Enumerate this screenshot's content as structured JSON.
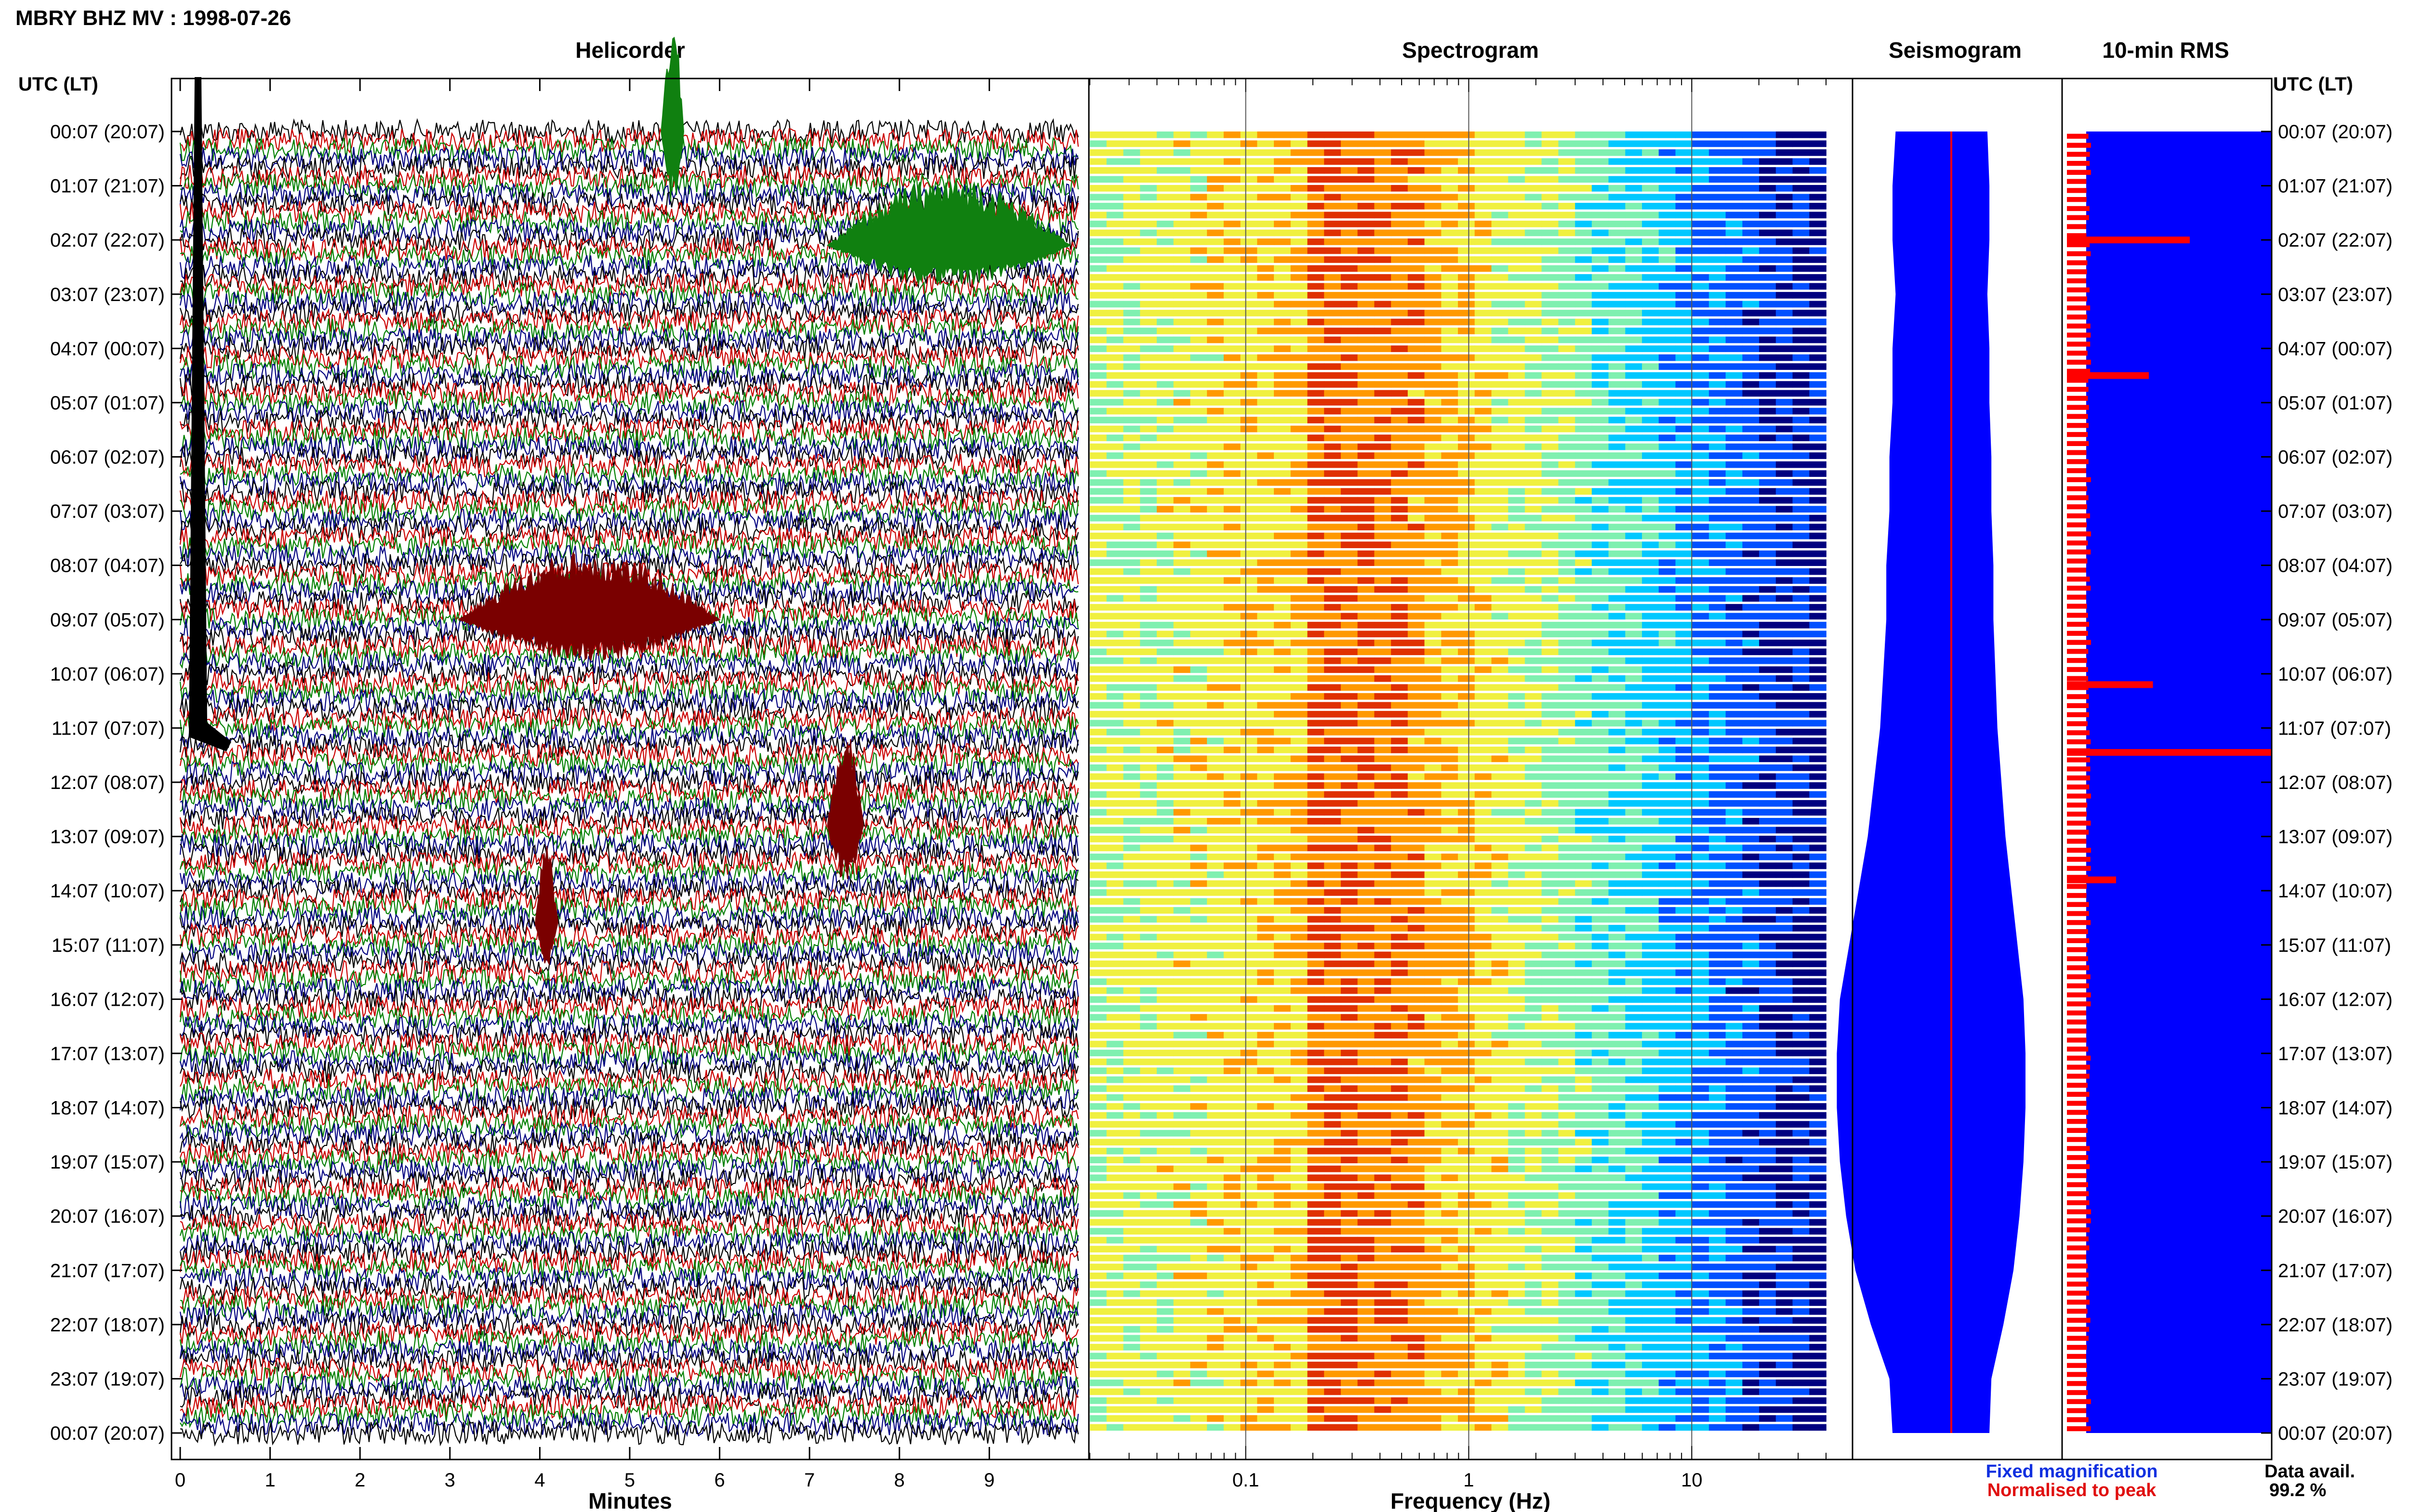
{
  "header": {
    "title": "MBRY BHZ MV : 1998-07-26"
  },
  "time_axis": {
    "left_header": "UTC (LT)",
    "right_header": "UTC (LT)",
    "labels": [
      "00:07 (20:07)",
      "01:07 (21:07)",
      "02:07 (22:07)",
      "03:07 (23:07)",
      "04:07 (00:07)",
      "05:07 (01:07)",
      "06:07 (02:07)",
      "07:07 (03:07)",
      "08:07 (04:07)",
      "09:07 (05:07)",
      "10:07 (06:07)",
      "11:07 (07:07)",
      "12:07 (08:07)",
      "13:07 (09:07)",
      "14:07 (10:07)",
      "15:07 (11:07)",
      "16:07 (12:07)",
      "17:07 (13:07)",
      "18:07 (14:07)",
      "19:07 (15:07)",
      "20:07 (16:07)",
      "21:07 (17:07)",
      "22:07 (18:07)",
      "23:07 (19:07)",
      "00:07 (20:07)"
    ]
  },
  "legend": {
    "fixed": "Fixed magnification",
    "normalised": "Normalised to peak",
    "fixed_color": "#1030e0",
    "normalised_color": "#e01010"
  },
  "data_avail": {
    "label": "Data avail.",
    "value": "99.2 %"
  },
  "colors": {
    "trace_cycle": [
      "#000000",
      "#cc0000",
      "#008000",
      "#000080"
    ],
    "helicorder_event_red": "#7a0000",
    "helicorder_event_green": "#108010",
    "seismogram_fill": "#0000ff",
    "rms_fill": "#0000ff",
    "rms_bar": "#ff0000",
    "spectrogram_scale": [
      "#000080",
      "#0050ff",
      "#00c8ff",
      "#7ff0b0",
      "#f0f040",
      "#ff9900",
      "#e03000"
    ]
  },
  "chart_data": [
    {
      "type": "helicorder",
      "title": "Helicorder",
      "xlabel": "Minutes",
      "xlim": [
        0,
        10
      ],
      "xticks": [
        0,
        1,
        2,
        3,
        4,
        5,
        6,
        7,
        8,
        9
      ],
      "rows": 145,
      "events": [
        {
          "hour": 0.0,
          "minute_start": 5.35,
          "minute_end": 5.6,
          "amplitude": 2.0,
          "color": "green"
        },
        {
          "hour": 2.1,
          "minute_start": 7.2,
          "minute_end": 9.9,
          "amplitude": 1.0,
          "color": "green"
        },
        {
          "hour": 9.0,
          "minute_start": 3.1,
          "minute_end": 6.0,
          "amplitude": 1.0,
          "color": "red"
        },
        {
          "hour": 12.8,
          "minute_start": 7.2,
          "minute_end": 7.6,
          "amplitude": 1.5,
          "color": "red"
        },
        {
          "hour": 14.6,
          "minute_start": 3.95,
          "minute_end": 4.2,
          "amplitude": 1.2,
          "color": "red"
        }
      ]
    },
    {
      "type": "heatmap",
      "title": "Spectrogram",
      "xlabel": "Frequency (Hz)",
      "xscale": "log",
      "xlim": [
        0.02,
        40
      ],
      "xticks": [
        0.1,
        1,
        10
      ],
      "xtick_labels": [
        "0.1",
        "1",
        "10"
      ],
      "peak_band_hz": [
        0.2,
        0.6
      ]
    },
    {
      "type": "area",
      "title": "Seismogram",
      "series": [
        {
          "values": [
            0.18,
            0.19,
            0.19,
            0.18,
            0.19,
            0.19,
            0.2,
            0.2,
            0.21,
            0.21,
            0.22,
            0.23,
            0.25,
            0.27,
            0.3,
            0.33,
            0.36,
            0.37,
            0.37,
            0.36,
            0.34,
            0.31,
            0.26,
            0.2,
            0.19
          ]
        }
      ]
    },
    {
      "type": "bar",
      "title": "10-min RMS",
      "peaks": [
        {
          "hour": 2.0,
          "value": 0.6
        },
        {
          "hour": 4.5,
          "value": 0.4
        },
        {
          "hour": 10.2,
          "value": 0.42
        },
        {
          "hour": 11.45,
          "value": 1.0
        },
        {
          "hour": 13.8,
          "value": 0.24
        }
      ]
    }
  ]
}
